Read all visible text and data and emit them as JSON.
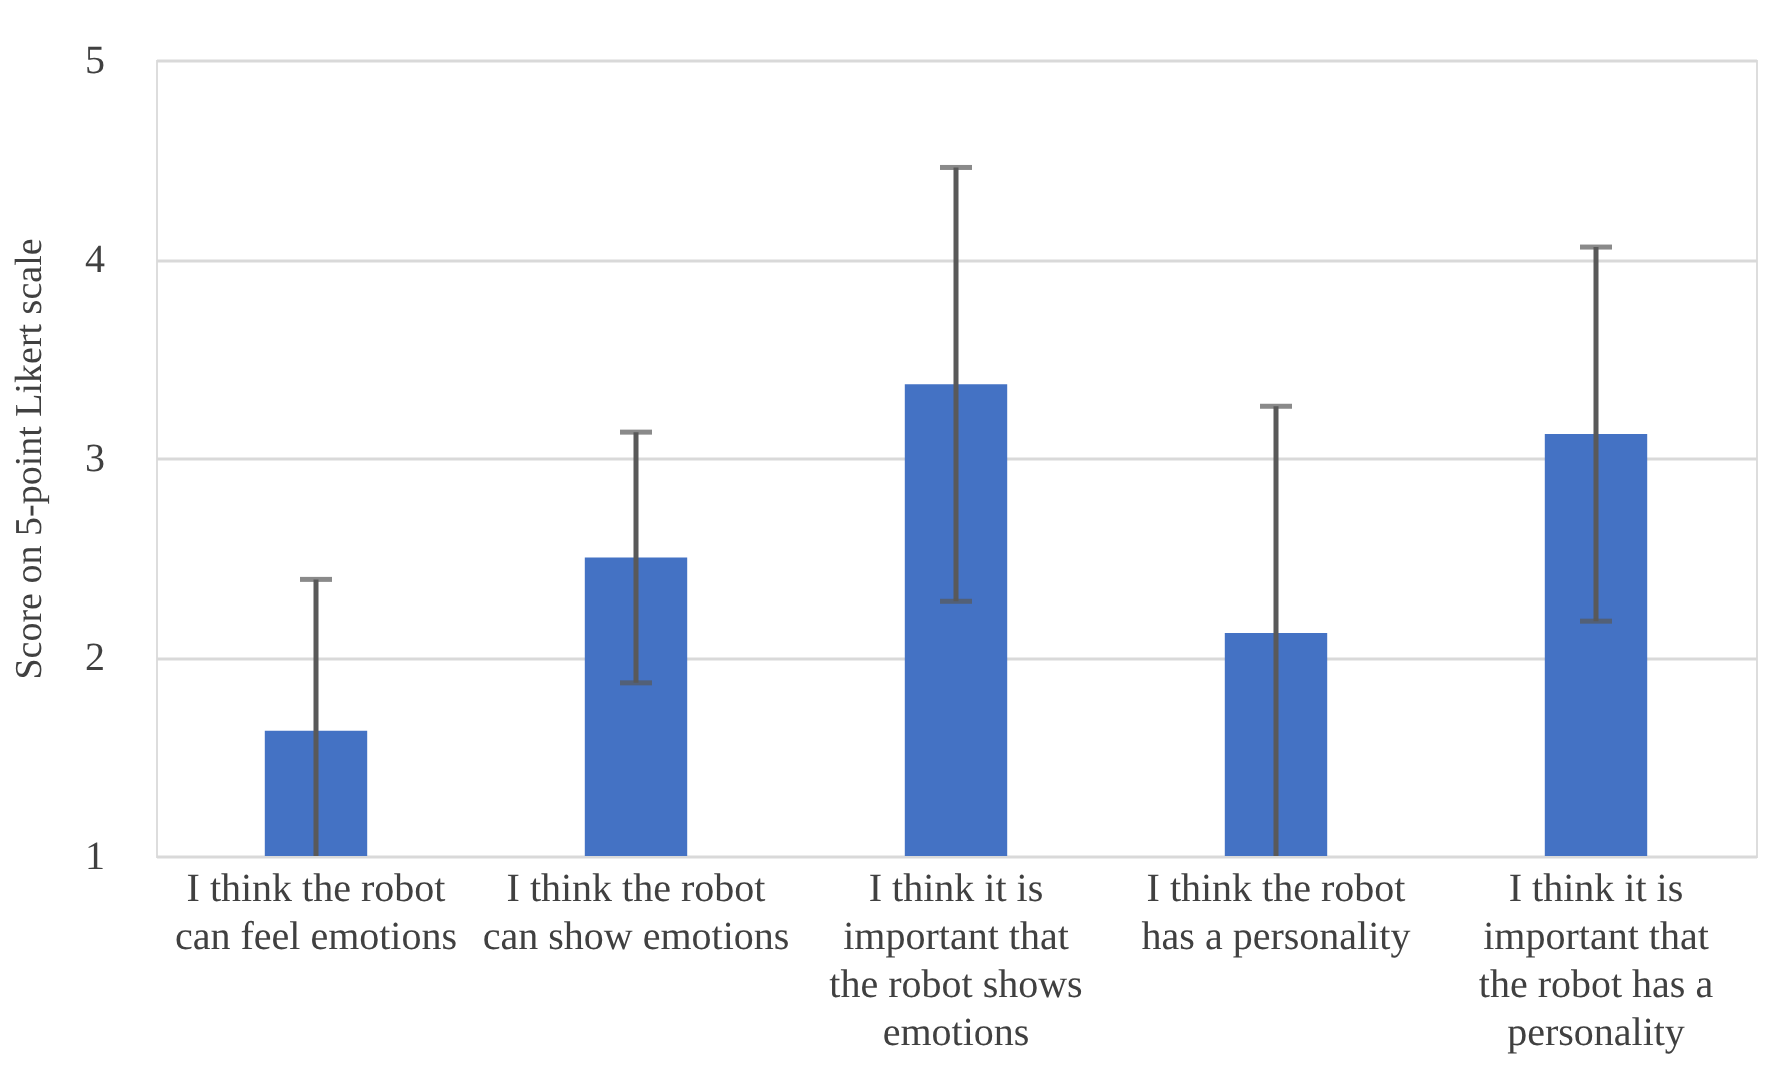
{
  "chart_data": {
    "type": "bar",
    "ylabel": "Score on 5-point Likert scale",
    "categories": [
      "I think the robot can feel emotions",
      "I think the robot can show emotions",
      "I think it is important that the robot shows emotions",
      "I think the robot has a personality",
      "I think it is important that the robot has a personality"
    ],
    "values": [
      1.63,
      2.5,
      3.37,
      2.12,
      3.12
    ],
    "errors": [
      [
        1,
        2.39
      ],
      [
        1.87,
        3.13
      ],
      [
        2.28,
        4.46
      ],
      [
        1,
        3.26
      ],
      [
        2.18,
        4.06
      ]
    ],
    "color": "#4472c4",
    "ylim": [
      1,
      5
    ],
    "yticks": [
      1,
      2,
      3,
      4,
      5
    ],
    "grid": "y"
  }
}
